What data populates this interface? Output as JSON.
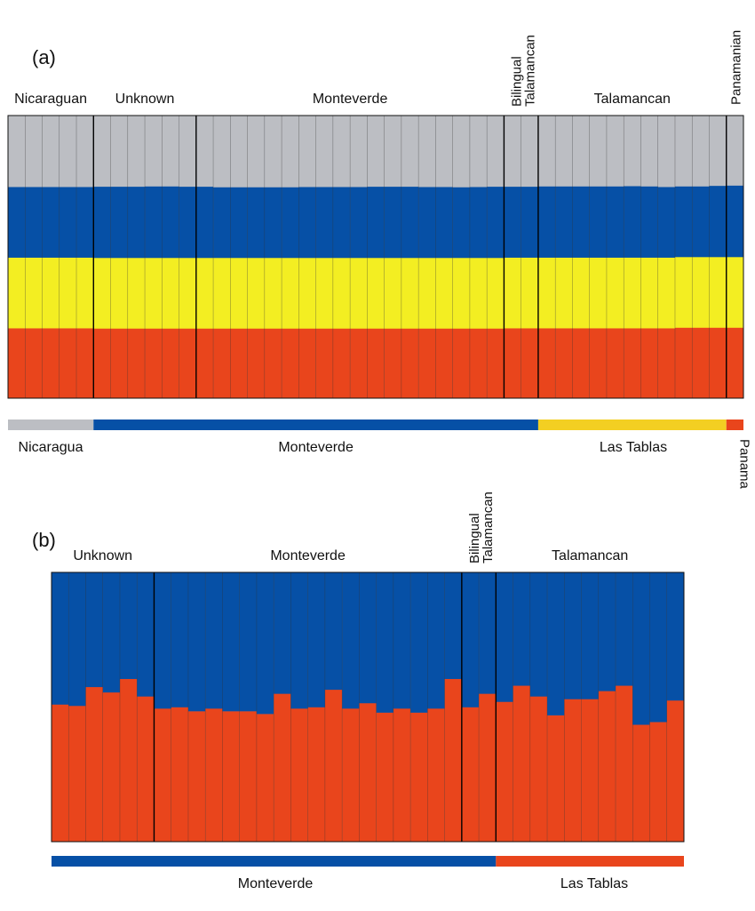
{
  "chart_data": [
    {
      "type": "bar",
      "stacked": true,
      "panel_label": "(a)",
      "ylim": [
        0,
        1
      ],
      "cluster_colors": [
        "#e9451c",
        "#f3ee22",
        "#0650a6",
        "#bcbec3"
      ],
      "group_labels": [
        "Nicaraguan",
        "Unknown",
        "Monteverde",
        "Bilingual\nTalamancan",
        "Talamancan",
        "Panamanian"
      ],
      "group_sizes": [
        5,
        6,
        18,
        2,
        11,
        1
      ],
      "series": [
        {
          "values": [
            0.248,
            0.248,
            0.248,
            0.248,
            0.248,
            0.247,
            0.247,
            0.247,
            0.247,
            0.247,
            0.247,
            0.247,
            0.247,
            0.247,
            0.247,
            0.247,
            0.247,
            0.247,
            0.247,
            0.247,
            0.247,
            0.247,
            0.247,
            0.247,
            0.247,
            0.247,
            0.247,
            0.247,
            0.247,
            0.248,
            0.248,
            0.248,
            0.248,
            0.248,
            0.248,
            0.248,
            0.248,
            0.248,
            0.248,
            0.25,
            0.25,
            0.25,
            0.25
          ]
        },
        {
          "values": [
            0.25,
            0.25,
            0.25,
            0.25,
            0.25,
            0.25,
            0.25,
            0.25,
            0.25,
            0.25,
            0.25,
            0.25,
            0.25,
            0.25,
            0.25,
            0.25,
            0.25,
            0.25,
            0.25,
            0.25,
            0.25,
            0.25,
            0.25,
            0.25,
            0.25,
            0.25,
            0.25,
            0.25,
            0.25,
            0.25,
            0.25,
            0.25,
            0.25,
            0.25,
            0.25,
            0.25,
            0.25,
            0.25,
            0.25,
            0.25,
            0.25,
            0.25,
            0.25
          ]
        },
        {
          "values": [
            0.25,
            0.25,
            0.25,
            0.25,
            0.25,
            0.252,
            0.252,
            0.252,
            0.253,
            0.253,
            0.252,
            0.252,
            0.25,
            0.25,
            0.25,
            0.25,
            0.25,
            0.251,
            0.251,
            0.251,
            0.251,
            0.252,
            0.252,
            0.252,
            0.251,
            0.251,
            0.25,
            0.251,
            0.252,
            0.251,
            0.251,
            0.252,
            0.252,
            0.252,
            0.252,
            0.252,
            0.253,
            0.252,
            0.25,
            0.25,
            0.25,
            0.252,
            0.253
          ]
        },
        {
          "values": [
            0.252,
            0.252,
            0.252,
            0.252,
            0.252,
            0.251,
            0.251,
            0.251,
            0.25,
            0.25,
            0.251,
            0.251,
            0.253,
            0.253,
            0.253,
            0.253,
            0.253,
            0.252,
            0.252,
            0.252,
            0.252,
            0.251,
            0.251,
            0.251,
            0.252,
            0.252,
            0.253,
            0.252,
            0.251,
            0.251,
            0.251,
            0.25,
            0.25,
            0.25,
            0.25,
            0.25,
            0.249,
            0.25,
            0.252,
            0.25,
            0.25,
            0.248,
            0.247
          ]
        }
      ],
      "sampling_bar": [
        {
          "label": "Nicaragua",
          "color": "#bcbec3",
          "start": 0,
          "end": 5
        },
        {
          "label": "Monteverde",
          "color": "#0650a6",
          "start": 5,
          "end": 31
        },
        {
          "label": "Las Tablas",
          "color": "#f3cf22",
          "start": 31,
          "end": 42
        },
        {
          "label": "Panama",
          "color": "#e9451c",
          "start": 42,
          "end": 43
        }
      ]
    },
    {
      "type": "bar",
      "stacked": true,
      "panel_label": "(b)",
      "ylim": [
        0,
        1
      ],
      "cluster_colors": [
        "#e9451c",
        "#0650a6"
      ],
      "group_labels": [
        "Unknown",
        "Monteverde",
        "Bilingual\nTalamancan",
        "Talamancan"
      ],
      "group_sizes": [
        6,
        18,
        2,
        11
      ],
      "series": [
        {
          "values": [
            0.51,
            0.505,
            0.575,
            0.555,
            0.605,
            0.54,
            0.495,
            0.5,
            0.485,
            0.495,
            0.485,
            0.485,
            0.475,
            0.55,
            0.495,
            0.5,
            0.565,
            0.495,
            0.515,
            0.48,
            0.495,
            0.48,
            0.495,
            0.605,
            0.5,
            0.55,
            0.52,
            0.58,
            0.54,
            0.47,
            0.53,
            0.53,
            0.56,
            0.58,
            0.435,
            0.445,
            0.525
          ]
        },
        {
          "values": [
            0.49,
            0.495,
            0.425,
            0.445,
            0.395,
            0.46,
            0.505,
            0.5,
            0.515,
            0.505,
            0.515,
            0.515,
            0.525,
            0.45,
            0.505,
            0.5,
            0.435,
            0.505,
            0.485,
            0.52,
            0.505,
            0.52,
            0.505,
            0.395,
            0.5,
            0.45,
            0.48,
            0.42,
            0.46,
            0.53,
            0.47,
            0.47,
            0.44,
            0.42,
            0.565,
            0.555,
            0.475
          ]
        }
      ],
      "sampling_bar": [
        {
          "label": "Monteverde",
          "color": "#0650a6",
          "start": 0,
          "end": 26
        },
        {
          "label": "Las Tablas",
          "color": "#e9451c",
          "start": 26,
          "end": 37
        }
      ]
    }
  ]
}
